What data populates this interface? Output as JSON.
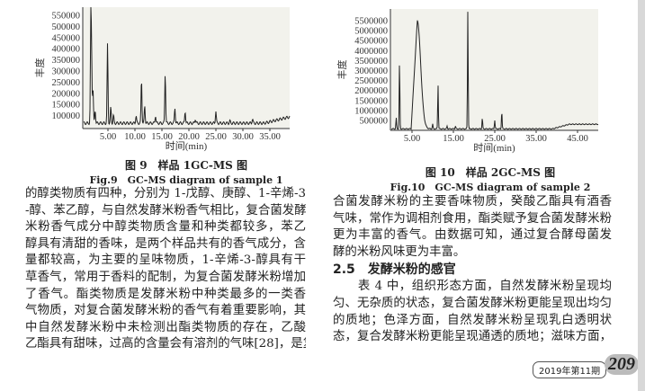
{
  "chart_data": [
    {
      "type": "line",
      "ylabel": "丰度",
      "xlabel": "时间(min)",
      "xlim": [
        0.3,
        38.7
      ],
      "ylim": [
        40000,
        600000
      ],
      "yticks": [
        "550000",
        "500000",
        "450000",
        "400000",
        "350000",
        "300000",
        "250000",
        "200000",
        "150000",
        "100000"
      ],
      "xticks": [
        "5.00",
        "10.00",
        "15.00",
        "20.00",
        "25.00",
        "30.00",
        "35.00"
      ],
      "baseline": 60000,
      "peaks": [
        [
          1.8,
          535000
        ],
        [
          1.95,
          320000
        ],
        [
          2.2,
          210000
        ],
        [
          2.6,
          120000
        ],
        [
          4.9,
          415000
        ],
        [
          5.5,
          130000
        ],
        [
          6.0,
          95000
        ],
        [
          10.2,
          95000
        ],
        [
          11.2,
          260000
        ],
        [
          11.8,
          140000
        ],
        [
          13.8,
          95000
        ],
        [
          15.6,
          285000
        ],
        [
          17.4,
          130000
        ],
        [
          19.3,
          115000
        ],
        [
          21.2,
          80000
        ],
        [
          25.0,
          115000
        ],
        [
          27.6,
          70000
        ],
        [
          31.8,
          80000
        ]
      ],
      "caption": "图 9　样品 1GC-MS 图",
      "caption_en": "Fig.9　GC-MS diagram of sample 1"
    },
    {
      "type": "line",
      "ylabel": "丰度",
      "xlabel": "时间(min)",
      "xlim": [
        -0.2,
        50
      ],
      "ylim": [
        0,
        6000000
      ],
      "yticks": [
        "5500000",
        "5000000",
        "4500000",
        "4000000",
        "3500000",
        "3000000",
        "2500000",
        "2000000",
        "1500000",
        "1000000",
        "500000"
      ],
      "xticks": [
        "5.00",
        "15.00",
        "25.00",
        "35.00",
        "45.00"
      ],
      "baseline": 60000,
      "peaks": [
        [
          1.2,
          600000
        ],
        [
          2.0,
          3400000
        ],
        [
          6.3,
          5500000
        ],
        [
          10.0,
          300000
        ],
        [
          11.3,
          2300000
        ],
        [
          13.5,
          200000
        ],
        [
          15.5,
          200000
        ],
        [
          18.5,
          6000000
        ],
        [
          22.0,
          600000
        ],
        [
          25.0,
          500000
        ],
        [
          26.7,
          950000
        ]
      ],
      "caption": "图 10　样品 2GC-MS 图",
      "caption_en": "Fig.10　GC-MS diagram of sample 2"
    }
  ],
  "left_lines": [
    "的醇类物质有四种，分别为 1-戊醇、庚醇、1-辛烯-3",
    "-醇、苯乙醇，与自然发酵米粉香气相比，复合菌发酵",
    "米粉香气成分中醇类物质含量和种类都较多，苯乙",
    "醇具有清甜的香味，是两个样品共有的香气成分，含",
    "量都较高，为主要的呈味物质，1-辛烯-3-醇具有干",
    "草香气，常用于香料的配制，为复合菌发酵米粉增加",
    "了香气。酯类物质是发酵米粉中种类最多的一类香",
    "气物质，对复合菌发酵米粉的香气有着重要影响，其",
    "中自然发酵米粉中未检测出酯类物质的存在，乙酸",
    "乙酯具有甜味，过高的含量会有溶剂的气味[28]，是复"
  ],
  "right_lines_a": [
    "合菌发酵米粉的主要香味物质，癸酸乙酯具有酒香",
    "气味，常作为调相剂食用，酯类赋予复合菌发酵米粉",
    "更为丰富的香气。由数据可知，通过复合酵母菌发",
    "酵的米粉风味更为丰富。"
  ],
  "section_heading": "2.5　发酵米粉的感官",
  "right_lines_b": [
    "　　表 4 中，组织形态方面，自然发酵米粉呈现均",
    "匀、无杂质的状态，复合菌发酵米粉更能呈现出均匀",
    "的质地；色泽方面，自然发酵米粉呈现乳白透明状",
    "态，复合发酵米粉更能呈现通透的质地；滋味方面，"
  ],
  "footer": {
    "issue": "2019年第11期",
    "page": "209"
  }
}
